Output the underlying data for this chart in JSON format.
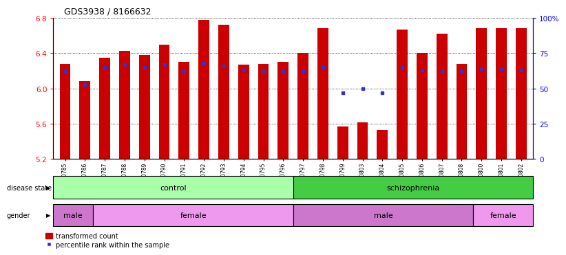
{
  "title": "GDS3938 / 8166632",
  "samples": [
    "GSM630785",
    "GSM630786",
    "GSM630787",
    "GSM630788",
    "GSM630789",
    "GSM630790",
    "GSM630791",
    "GSM630792",
    "GSM630793",
    "GSM630794",
    "GSM630795",
    "GSM630796",
    "GSM630797",
    "GSM630798",
    "GSM630799",
    "GSM630803",
    "GSM630804",
    "GSM630805",
    "GSM630806",
    "GSM630807",
    "GSM630808",
    "GSM630800",
    "GSM630801",
    "GSM630802"
  ],
  "bar_values": [
    6.28,
    6.08,
    6.35,
    6.43,
    6.38,
    6.5,
    6.3,
    6.78,
    6.72,
    6.27,
    6.28,
    6.3,
    6.4,
    6.68,
    5.57,
    5.62,
    5.53,
    6.67,
    6.4,
    6.62,
    6.28,
    6.68,
    6.68,
    6.68
  ],
  "percentile_values": [
    62,
    53,
    65,
    67,
    65,
    67,
    62,
    68,
    66,
    63,
    62,
    62,
    62,
    65,
    47,
    50,
    47,
    65,
    63,
    62,
    62,
    64,
    64,
    63
  ],
  "ymin": 5.2,
  "ymax": 6.8,
  "yticks_left": [
    5.2,
    5.6,
    6.0,
    6.4,
    6.8
  ],
  "yticks_right": [
    0,
    25,
    50,
    75,
    100
  ],
  "ytick_right_labels": [
    "0",
    "25",
    "50",
    "75",
    "100%"
  ],
  "bar_color": "#cc0000",
  "percentile_color": "#3333cc",
  "disease_state_control_color": "#aaffaa",
  "disease_state_schizophrenia_color": "#44cc44",
  "gender_male_color": "#cc77cc",
  "gender_female_color": "#ee99ee",
  "control_count": 12,
  "male_control_count": 2,
  "female_control_count": 10,
  "schizophrenia_count": 12,
  "male_schizophrenia_count": 9,
  "female_schizophrenia_count": 3
}
